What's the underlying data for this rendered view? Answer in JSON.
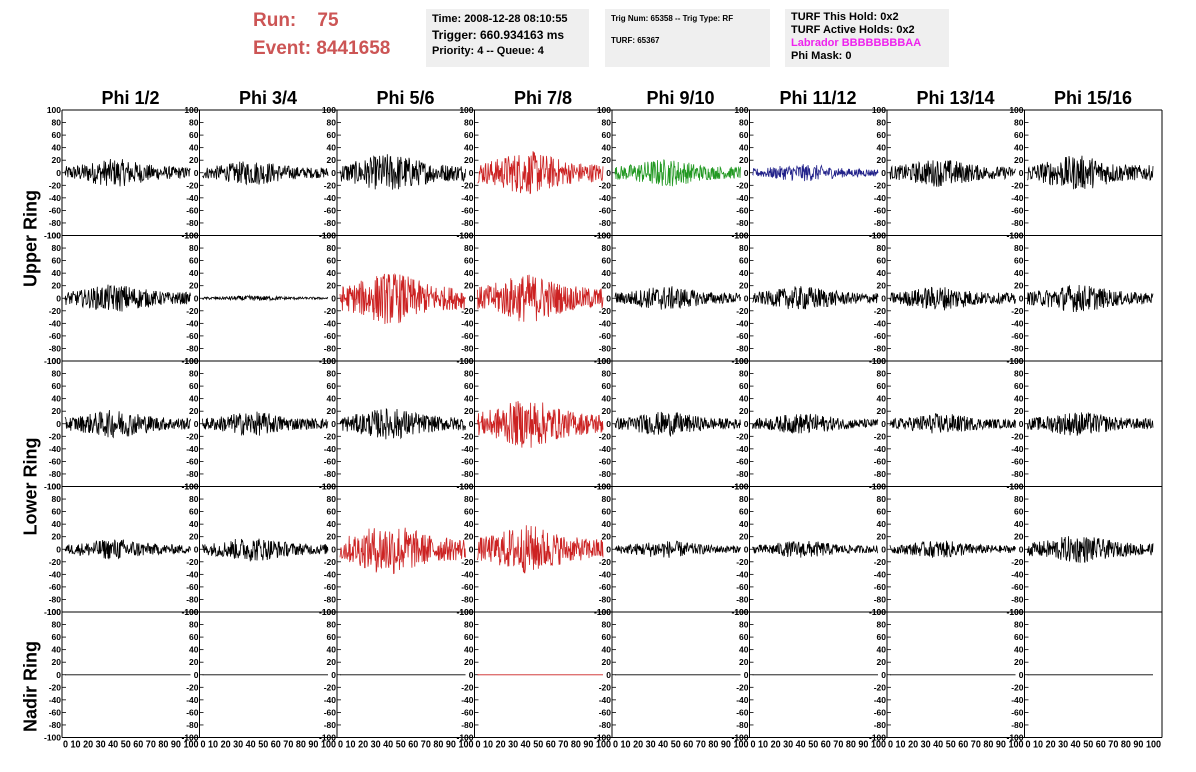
{
  "header": {
    "run_label": "Run:",
    "run_value": "75",
    "event_label": "Event:",
    "event_value": "8441658",
    "time": "Time: 2008-12-28 08:10:55",
    "trigger": "Trigger: 660.934163 ms",
    "priority": "Priority: 4 -- Queue: 4",
    "trig_num": "Trig Num: 65358 -- Trig Type: RF",
    "turf": "TURF: 65367",
    "turf_hold": "TURF This Hold: 0x2",
    "turf_active": "TURF Active Holds: 0x2",
    "labrador": "Labrador BBBBBBBBAA",
    "phi_mask": "Phi Mask: 0"
  },
  "colors": {
    "run_text": "#cc5555",
    "labrador_text": "#ee22ee",
    "trace_black": "#000000",
    "trace_red": "#cc2222",
    "trace_green": "#229922",
    "trace_blue": "#22228a",
    "info_bg": "#efefef"
  },
  "phi_labels": [
    "Phi 1/2",
    "Phi 3/4",
    "Phi 5/6",
    "Phi 7/8",
    "Phi 9/10",
    "Phi 11/12",
    "Phi 13/14",
    "Phi 15/16"
  ],
  "ring_labels": {
    "upper": "Upper Ring",
    "lower": "Lower Ring",
    "nadir": "Nadir Ring"
  },
  "chart_data": {
    "type": "line",
    "ylim": [
      -100,
      100
    ],
    "xlim": [
      0,
      100
    ],
    "y_ticks": [
      -100,
      -80,
      -60,
      -40,
      -20,
      0,
      20,
      40,
      60,
      80,
      100
    ],
    "x_tick_labels": "0 10 20 30 40 50 60 70 80 90 100",
    "grid": false,
    "rows": [
      {
        "ring": "Upper Ring",
        "colors": [
          "black",
          "black",
          "black",
          "red",
          "green",
          "blue",
          "black",
          "black"
        ],
        "amplitudes": [
          16,
          14,
          22,
          25,
          16,
          10,
          16,
          20
        ]
      },
      {
        "ring": "Upper Ring",
        "colors": [
          "black",
          "black",
          "red",
          "red",
          "black",
          "black",
          "black",
          "black"
        ],
        "amplitudes": [
          16,
          3,
          30,
          28,
          14,
          14,
          14,
          16
        ]
      },
      {
        "ring": "Lower Ring",
        "colors": [
          "black",
          "black",
          "black",
          "red",
          "black",
          "black",
          "black",
          "black"
        ],
        "amplitudes": [
          16,
          14,
          18,
          28,
          14,
          12,
          12,
          14
        ]
      },
      {
        "ring": "Lower Ring",
        "colors": [
          "black",
          "black",
          "red",
          "red",
          "black",
          "black",
          "black",
          "black"
        ],
        "amplitudes": [
          12,
          14,
          30,
          28,
          10,
          10,
          10,
          16
        ]
      },
      {
        "ring": "Nadir Ring",
        "colors": [
          "black",
          "black",
          "black",
          "red",
          "black",
          "black",
          "black",
          "black"
        ],
        "amplitudes": [
          0,
          0,
          0,
          0,
          0,
          0,
          0,
          0
        ]
      }
    ]
  }
}
